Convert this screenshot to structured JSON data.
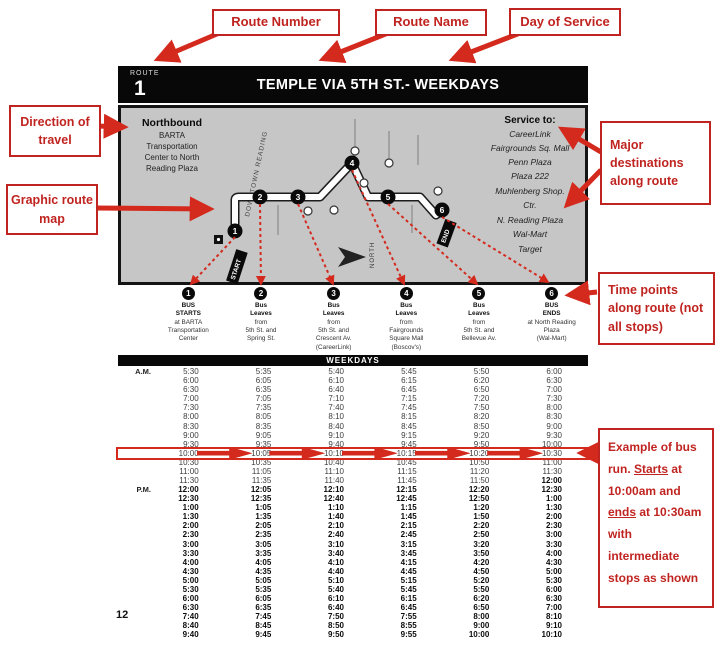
{
  "colors": {
    "accent_red": "#c02420",
    "arrow_red": "#d42a1e",
    "map_gray": "#c6c6c6",
    "bar_black": "#080808"
  },
  "callouts": {
    "route_number": "Route Number",
    "route_name": "Route Name",
    "day_of_service": "Day of Service",
    "direction": "Direction of travel",
    "graphic_map": "Graphic route map",
    "major_destinations": "Major destinations along route",
    "time_points": "Time points along route (not all stops)",
    "example_segments": [
      {
        "t": "Example of bus run.  "
      },
      {
        "t": "Starts",
        "u": true
      },
      {
        "t": " at "
      },
      {
        "t": "10:00am",
        "b": true
      },
      {
        "t": " and "
      },
      {
        "t": "ends",
        "u": true
      },
      {
        "t": " at "
      },
      {
        "t": "10:30am",
        "b": true
      },
      {
        "t": " with intermediate stops as shown"
      }
    ]
  },
  "header": {
    "route_label": "ROUTE",
    "route_number": "1",
    "title": "TEMPLE VIA 5TH ST.- WEEKDAYS"
  },
  "map": {
    "direction_title": "Northbound",
    "direction_lines": [
      "BARTA",
      "Transportation",
      "Center to North",
      "Reading Plaza"
    ],
    "service_title": "Service to:",
    "service_list": [
      "CareerLink",
      "Fairgrounds Sq. Mall",
      "Penn Plaza",
      "Plaza 222",
      "Muhlenberg Shop.",
      "Ctr.",
      "N. Reading Plaza",
      "Wal-Mart",
      "Target"
    ],
    "downtown_label": "DOWNTOWN READING",
    "compass_label": "NORTH",
    "start_flag": "START",
    "end_flag": "END"
  },
  "timepoints": [
    {
      "n": "1",
      "bold": 2,
      "lines": [
        "BUS",
        "STARTS",
        "at BARTA",
        "Transportation",
        "Center"
      ]
    },
    {
      "n": "2",
      "bold": 2,
      "lines": [
        "Bus",
        "Leaves",
        "from",
        "5th St. and",
        "Spring St."
      ]
    },
    {
      "n": "3",
      "bold": 2,
      "lines": [
        "Bus",
        "Leaves",
        "from",
        "5th St. and",
        "Crescent Av.",
        "(CareerLink)"
      ]
    },
    {
      "n": "4",
      "bold": 2,
      "lines": [
        "Bus",
        "Leaves",
        "from",
        "Fairgrounds",
        "Square Mall",
        "(Boscov's)"
      ]
    },
    {
      "n": "5",
      "bold": 2,
      "lines": [
        "Bus",
        "Leaves",
        "from",
        "5th St. and",
        "Bellevue Av."
      ]
    },
    {
      "n": "6",
      "bold": 2,
      "lines": [
        "BUS",
        "ENDS",
        "at North Reading",
        "Plaza",
        "(Wal-Mart)"
      ]
    }
  ],
  "timetable": {
    "band_label": "WEEKDAYS",
    "rows": [
      {
        "period": "A.M.",
        "pm_from": 99,
        "highlight": false,
        "times": [
          "5:30",
          "5:35",
          "5:40",
          "5:45",
          "5:50",
          "6:00"
        ]
      },
      {
        "period": "",
        "pm_from": 99,
        "highlight": false,
        "times": [
          "6:00",
          "6:05",
          "6:10",
          "6:15",
          "6:20",
          "6:30"
        ]
      },
      {
        "period": "",
        "pm_from": 99,
        "highlight": false,
        "times": [
          "6:30",
          "6:35",
          "6:40",
          "6:45",
          "6:50",
          "7:00"
        ]
      },
      {
        "period": "",
        "pm_from": 99,
        "highlight": false,
        "times": [
          "7:00",
          "7:05",
          "7:10",
          "7:15",
          "7:20",
          "7:30"
        ]
      },
      {
        "period": "",
        "pm_from": 99,
        "highlight": false,
        "times": [
          "7:30",
          "7:35",
          "7:40",
          "7:45",
          "7:50",
          "8:00"
        ]
      },
      {
        "period": "",
        "pm_from": 99,
        "highlight": false,
        "times": [
          "8:00",
          "8:05",
          "8:10",
          "8:15",
          "8:20",
          "8:30"
        ]
      },
      {
        "period": "",
        "pm_from": 99,
        "highlight": false,
        "times": [
          "8:30",
          "8:35",
          "8:40",
          "8:45",
          "8:50",
          "9:00"
        ]
      },
      {
        "period": "",
        "pm_from": 99,
        "highlight": false,
        "times": [
          "9:00",
          "9:05",
          "9:10",
          "9:15",
          "9:20",
          "9:30"
        ]
      },
      {
        "period": "",
        "pm_from": 99,
        "highlight": false,
        "times": [
          "9:30",
          "9:35",
          "9:40",
          "9:45",
          "9:50",
          "10:00"
        ]
      },
      {
        "period": "",
        "pm_from": 99,
        "highlight": true,
        "times": [
          "10:00",
          "10:05",
          "10:10",
          "10:15",
          "10:20",
          "10:30"
        ]
      },
      {
        "period": "",
        "pm_from": 99,
        "highlight": false,
        "times": [
          "10:30",
          "10:35",
          "10:40",
          "10:45",
          "10:50",
          "11:00"
        ]
      },
      {
        "period": "",
        "pm_from": 99,
        "highlight": false,
        "times": [
          "11:00",
          "11:05",
          "11:10",
          "11:15",
          "11:20",
          "11:30"
        ]
      },
      {
        "period": "",
        "pm_from": 5,
        "highlight": false,
        "times": [
          "11:30",
          "11:35",
          "11:40",
          "11:45",
          "11:50",
          "12:00"
        ]
      },
      {
        "period": "P.M.",
        "pm_from": 0,
        "highlight": false,
        "times": [
          "12:00",
          "12:05",
          "12:10",
          "12:15",
          "12:20",
          "12:30"
        ]
      },
      {
        "period": "",
        "pm_from": 0,
        "highlight": false,
        "times": [
          "12:30",
          "12:35",
          "12:40",
          "12:45",
          "12:50",
          "1:00"
        ]
      },
      {
        "period": "",
        "pm_from": 0,
        "highlight": false,
        "times": [
          "1:00",
          "1:05",
          "1:10",
          "1:15",
          "1:20",
          "1:30"
        ]
      },
      {
        "period": "",
        "pm_from": 0,
        "highlight": false,
        "times": [
          "1:30",
          "1:35",
          "1:40",
          "1:45",
          "1:50",
          "2:00"
        ]
      },
      {
        "period": "",
        "pm_from": 0,
        "highlight": false,
        "times": [
          "2:00",
          "2:05",
          "2:10",
          "2:15",
          "2:20",
          "2:30"
        ]
      },
      {
        "period": "",
        "pm_from": 0,
        "highlight": false,
        "times": [
          "2:30",
          "2:35",
          "2:40",
          "2:45",
          "2:50",
          "3:00"
        ]
      },
      {
        "period": "",
        "pm_from": 0,
        "highlight": false,
        "times": [
          "3:00",
          "3:05",
          "3:10",
          "3:15",
          "3:20",
          "3:30"
        ]
      },
      {
        "period": "",
        "pm_from": 0,
        "highlight": false,
        "times": [
          "3:30",
          "3:35",
          "3:40",
          "3:45",
          "3:50",
          "4:00"
        ]
      },
      {
        "period": "",
        "pm_from": 0,
        "highlight": false,
        "times": [
          "4:00",
          "4:05",
          "4:10",
          "4:15",
          "4:20",
          "4:30"
        ]
      },
      {
        "period": "",
        "pm_from": 0,
        "highlight": false,
        "times": [
          "4:30",
          "4:35",
          "4:40",
          "4:45",
          "4:50",
          "5:00"
        ]
      },
      {
        "period": "",
        "pm_from": 0,
        "highlight": false,
        "times": [
          "5:00",
          "5:05",
          "5:10",
          "5:15",
          "5:20",
          "5:30"
        ]
      },
      {
        "period": "",
        "pm_from": 0,
        "highlight": false,
        "times": [
          "5:30",
          "5:35",
          "5:40",
          "5:45",
          "5:50",
          "6:00"
        ]
      },
      {
        "period": "",
        "pm_from": 0,
        "highlight": false,
        "times": [
          "6:00",
          "6:05",
          "6:10",
          "6:15",
          "6:20",
          "6:30"
        ]
      },
      {
        "period": "",
        "pm_from": 0,
        "highlight": false,
        "times": [
          "6:30",
          "6:35",
          "6:40",
          "6:45",
          "6:50",
          "7:00"
        ]
      },
      {
        "period": "",
        "pm_from": 0,
        "highlight": false,
        "times": [
          "7:40",
          "7:45",
          "7:50",
          "7:55",
          "8:00",
          "8:10"
        ]
      },
      {
        "period": "",
        "pm_from": 0,
        "highlight": false,
        "times": [
          "8:40",
          "8:45",
          "8:50",
          "8:55",
          "9:00",
          "9:10"
        ]
      },
      {
        "period": "",
        "pm_from": 0,
        "highlight": false,
        "times": [
          "9:40",
          "9:45",
          "9:50",
          "9:55",
          "10:00",
          "10:10"
        ]
      }
    ]
  },
  "page_number": "12"
}
